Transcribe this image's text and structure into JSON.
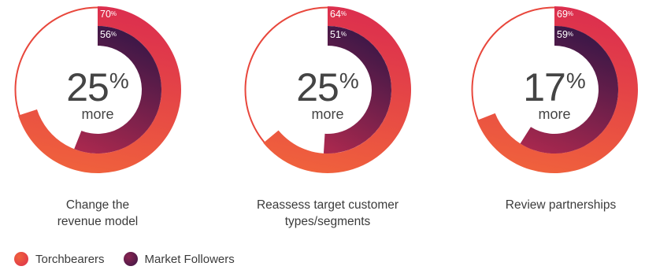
{
  "chart_data": [
    {
      "type": "donut",
      "caption": [
        "Change the",
        "revenue model"
      ],
      "center_value": "25",
      "center_unit": "%",
      "center_sub": "more",
      "series": [
        {
          "name": "Torchbearers",
          "value": 70,
          "label": "70",
          "unit": "%"
        },
        {
          "name": "Market Followers",
          "value": 56,
          "label": "56",
          "unit": "%"
        }
      ]
    },
    {
      "type": "donut",
      "caption": [
        "Reassess target customer",
        "types/segments"
      ],
      "center_value": "25",
      "center_unit": "%",
      "center_sub": "more",
      "series": [
        {
          "name": "Torchbearers",
          "value": 64,
          "label": "64",
          "unit": "%"
        },
        {
          "name": "Market Followers",
          "value": 51,
          "label": "51",
          "unit": "%"
        }
      ]
    },
    {
      "type": "donut",
      "caption": [
        "Review partnerships"
      ],
      "center_value": "17",
      "center_unit": "%",
      "center_sub": "more",
      "series": [
        {
          "name": "Torchbearers",
          "value": 69,
          "label": "69",
          "unit": "%"
        },
        {
          "name": "Market Followers",
          "value": 59,
          "label": "59",
          "unit": "%"
        }
      ]
    }
  ],
  "legend": [
    {
      "name": "Torchbearers",
      "color": "#e8473c"
    },
    {
      "name": "Market Followers",
      "color": "#4a1c4a"
    }
  ],
  "colors": {
    "torch_start": "#dc2f4e",
    "torch_end": "#f0623c",
    "follower_start": "#3a1747",
    "follower_end": "#a8284e",
    "track": "#e8473c"
  }
}
